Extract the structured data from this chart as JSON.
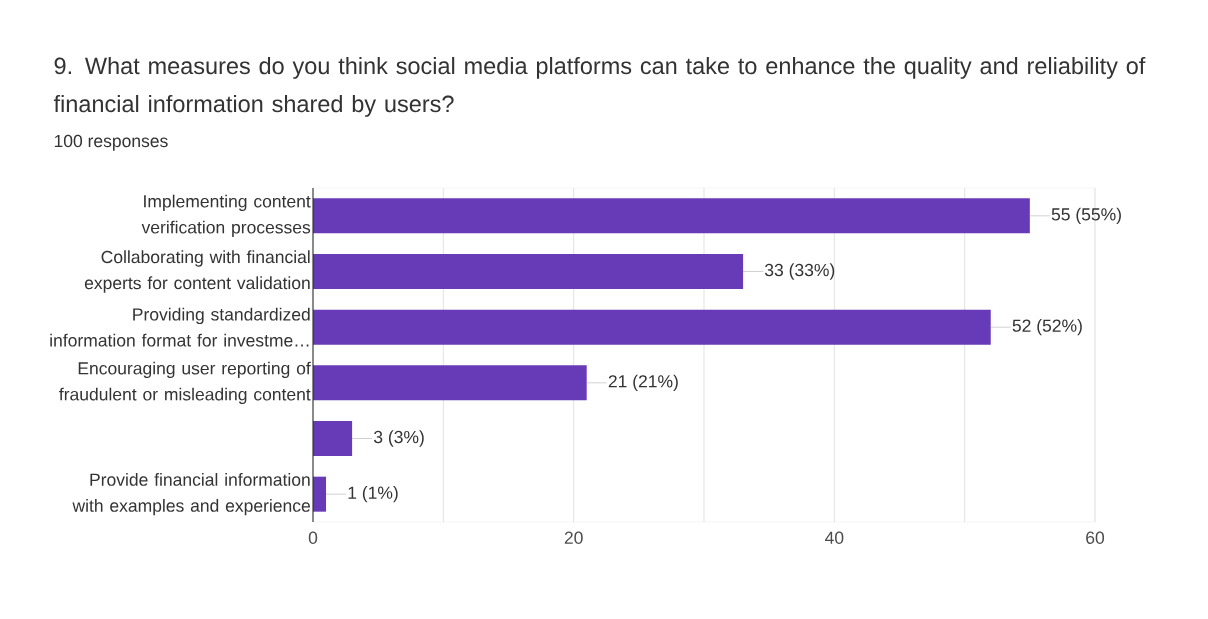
{
  "chart_data": {
    "type": "bar",
    "orientation": "horizontal",
    "title": "9. What measures do you think social media platforms can take to enhance the quality and reliability of financial information shared by users?",
    "subtitle": "100 responses",
    "categories": [
      "Implementing content verification processes",
      "Collaborating with financial experts for content validation",
      "Providing standardized information format for investme…",
      "Encouraging user reporting of fraudulent or misleading content",
      null,
      "Provide financial information with examples and experience"
    ],
    "values": [
      55,
      33,
      52,
      21,
      3,
      1
    ],
    "value_labels": [
      "55 (55%)",
      "33 (33%)",
      "52 (52%)",
      "21 (21%)",
      "3 (3%)",
      "1 (1%)"
    ],
    "color": "#673ab7",
    "xlim": [
      0,
      60
    ],
    "xticks": [
      0,
      {
        "value": 10,
        "label": null
      },
      20,
      {
        "value": 30,
        "label": null
      },
      40,
      {
        "value": 50,
        "label": null
      },
      60
    ],
    "grid": "x"
  }
}
